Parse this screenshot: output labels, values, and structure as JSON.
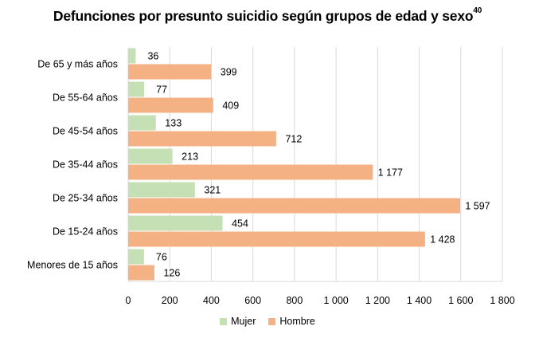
{
  "chart_data": {
    "type": "bar",
    "orientation": "horizontal",
    "title": "Defunciones por presunto suicidio según grupos de edad y sexo",
    "title_superscript": "40",
    "categories": [
      "De 65 y más años",
      "De 55-64 años",
      "De 45-54 años",
      "De 35-44 años",
      "De 25-34 años",
      "De 15-24 años",
      "Menores de 15 años"
    ],
    "series": [
      {
        "name": "Mujer",
        "color": "#c5e0b4",
        "values": [
          36,
          77,
          133,
          213,
          321,
          454,
          76
        ],
        "labels": [
          "36",
          "77",
          "133",
          "213",
          "321",
          "454",
          "76"
        ]
      },
      {
        "name": "Hombre",
        "color": "#f4b183",
        "values": [
          399,
          409,
          712,
          1177,
          1597,
          1428,
          126
        ],
        "labels": [
          "399",
          "409",
          "712",
          "1 177",
          "1 597",
          "1 428",
          "126"
        ]
      }
    ],
    "xlim": [
      0,
      1800
    ],
    "xticks": [
      0,
      200,
      400,
      600,
      800,
      1000,
      1200,
      1400,
      1600,
      1800
    ],
    "xtick_labels": [
      "0",
      "200",
      "400",
      "600",
      "800",
      "1 000",
      "1 200",
      "1 400",
      "1 600",
      "1 800"
    ],
    "xlabel": "",
    "ylabel": "",
    "grid": true,
    "legend": "bottom",
    "grid_color": "#d9d9d9"
  }
}
